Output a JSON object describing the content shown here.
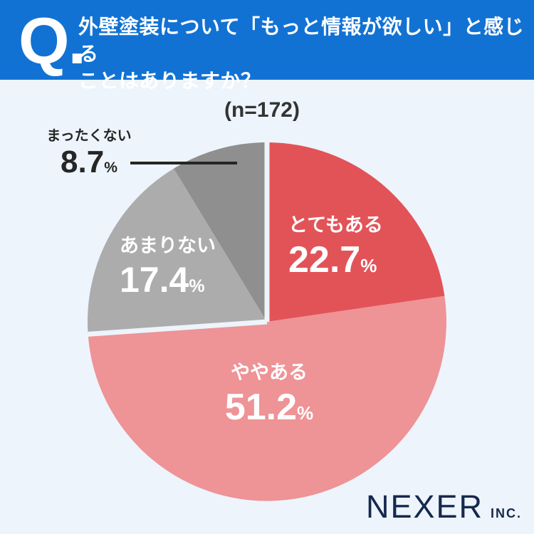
{
  "page": {
    "background_color": "#EDF4FB"
  },
  "header": {
    "background_color": "#1272D3",
    "q_mark": "Q.",
    "question_line1": "外壁塗装について「もっと情報が欲しい」と感じる",
    "question_line2": "ことはありますか？"
  },
  "chart_data": {
    "type": "pie",
    "title": "外壁塗装について「もっと情報が欲しい」と感じることはありますか？",
    "sample_label": "(n=172)",
    "sample_size": 172,
    "unit": "%",
    "direction": "clockwise",
    "start_angle_deg": 0,
    "center": [
      375,
      452
    ],
    "radius": 252,
    "separator_color": "#EDF4FB",
    "separators_pct": [
      0,
      73.9
    ],
    "slices": [
      {
        "label": "とてもある",
        "value": 22.7,
        "display_value": "22.7",
        "color": "#E25358",
        "text_color": "#FFFFFF"
      },
      {
        "label": "ややある",
        "value": 51.2,
        "display_value": "51.2",
        "color": "#EE9396",
        "text_color": "#FFFFFF"
      },
      {
        "label": "あまりない",
        "value": 17.4,
        "display_value": "17.4",
        "color": "#ACACAC",
        "text_color": "#FFFFFF"
      },
      {
        "label": "まったくない",
        "value": 8.7,
        "display_value": "8.7",
        "color": "#8F8F8F",
        "text_color": "#262626"
      }
    ],
    "callout": {
      "target_slice": "まったくない",
      "line_color": "#262626"
    }
  },
  "footer": {
    "brand_name": "NEXER",
    "brand_suffix": "INC.",
    "brand_color": "#16294D"
  }
}
